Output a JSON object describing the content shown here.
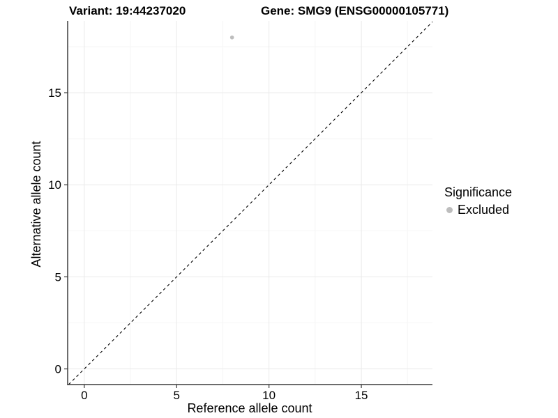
{
  "figure": {
    "title_variant": "Variant: 19:44237020",
    "title_gene": "Gene: SMG9 (ENSG00000105771)"
  },
  "chart_data": {
    "type": "scatter",
    "title": "Variant: 19:44237020   Gene: SMG9 (ENSG00000105771)",
    "xlabel": "Reference allele count",
    "ylabel": "Alternative allele count",
    "xlim": [
      -0.9,
      18.85
    ],
    "ylim": [
      -0.85,
      18.9
    ],
    "x_ticks": [
      0,
      5,
      10,
      15
    ],
    "y_ticks": [
      0,
      5,
      10,
      15
    ],
    "x_minor_ticks": [
      2.5,
      7.5,
      12.5,
      17.5
    ],
    "y_minor_ticks": [
      2.5,
      7.5,
      12.5,
      17.5
    ],
    "grid": "major+minor",
    "series": [
      {
        "name": "Excluded",
        "color": "#bdbdbd",
        "points": [
          {
            "x": 8,
            "y": 18
          }
        ]
      }
    ],
    "reference_line": {
      "type": "identity",
      "slope": 1,
      "intercept": 0,
      "linestyle": "dashed",
      "color": "#000000"
    },
    "legend": {
      "title": "Significance",
      "position": "right",
      "entries": [
        {
          "label": "Excluded",
          "color": "#bdbdbd"
        }
      ]
    },
    "colors": {
      "axis_line": "#3c3c3c",
      "tick_mark": "#333333",
      "major_grid": "#e9e9e9",
      "minor_grid": "#f5f5f5",
      "background": "#ffffff"
    }
  }
}
